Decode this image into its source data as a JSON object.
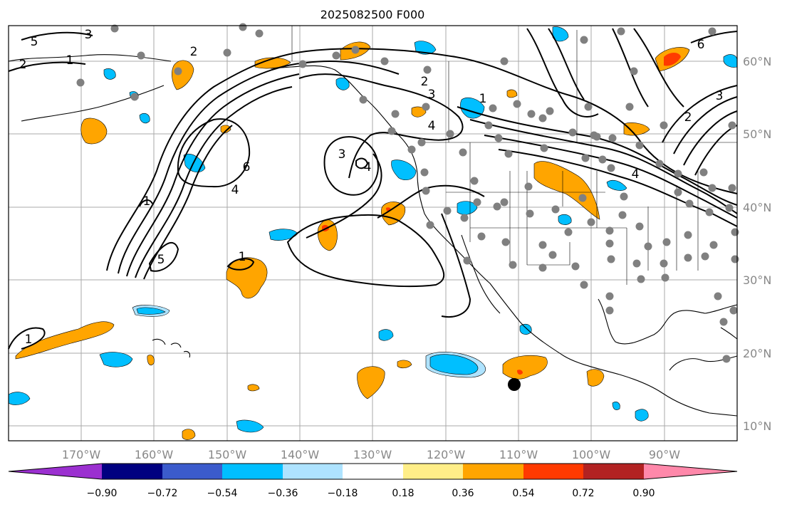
{
  "title": "2025082500 F000",
  "lon_labels": [
    "170°W",
    "160°W",
    "150°W",
    "140°W",
    "130°W",
    "120°W",
    "110°W",
    "100°W",
    "90°W"
  ],
  "lat_labels": [
    "60°N",
    "50°N",
    "40°N",
    "30°N",
    "20°N",
    "10°N"
  ],
  "colorbar": {
    "tick_labels": [
      "−0.90",
      "−0.72",
      "−0.54",
      "−0.36",
      "−0.18",
      "0.18",
      "0.36",
      "0.54",
      "0.72",
      "0.90"
    ],
    "colors": [
      "#9b30d0",
      "#000080",
      "#3b5bcc",
      "#00bfff",
      "#aee3ff",
      "#ffffff",
      "#ffee88",
      "#ffa500",
      "#ff3a00",
      "#b22222",
      "#ff88aa"
    ]
  },
  "contour_labels": [
    "1",
    "2",
    "3",
    "4",
    "5",
    "6"
  ],
  "fill_colors": {
    "orange": "#ffa500",
    "cyan": "#00bfff",
    "lightblue": "#aee3ff",
    "red": "#ff3a00",
    "yellow": "#ffee88"
  },
  "marker_color": "#808080",
  "storm_marker_color": "#000000"
}
